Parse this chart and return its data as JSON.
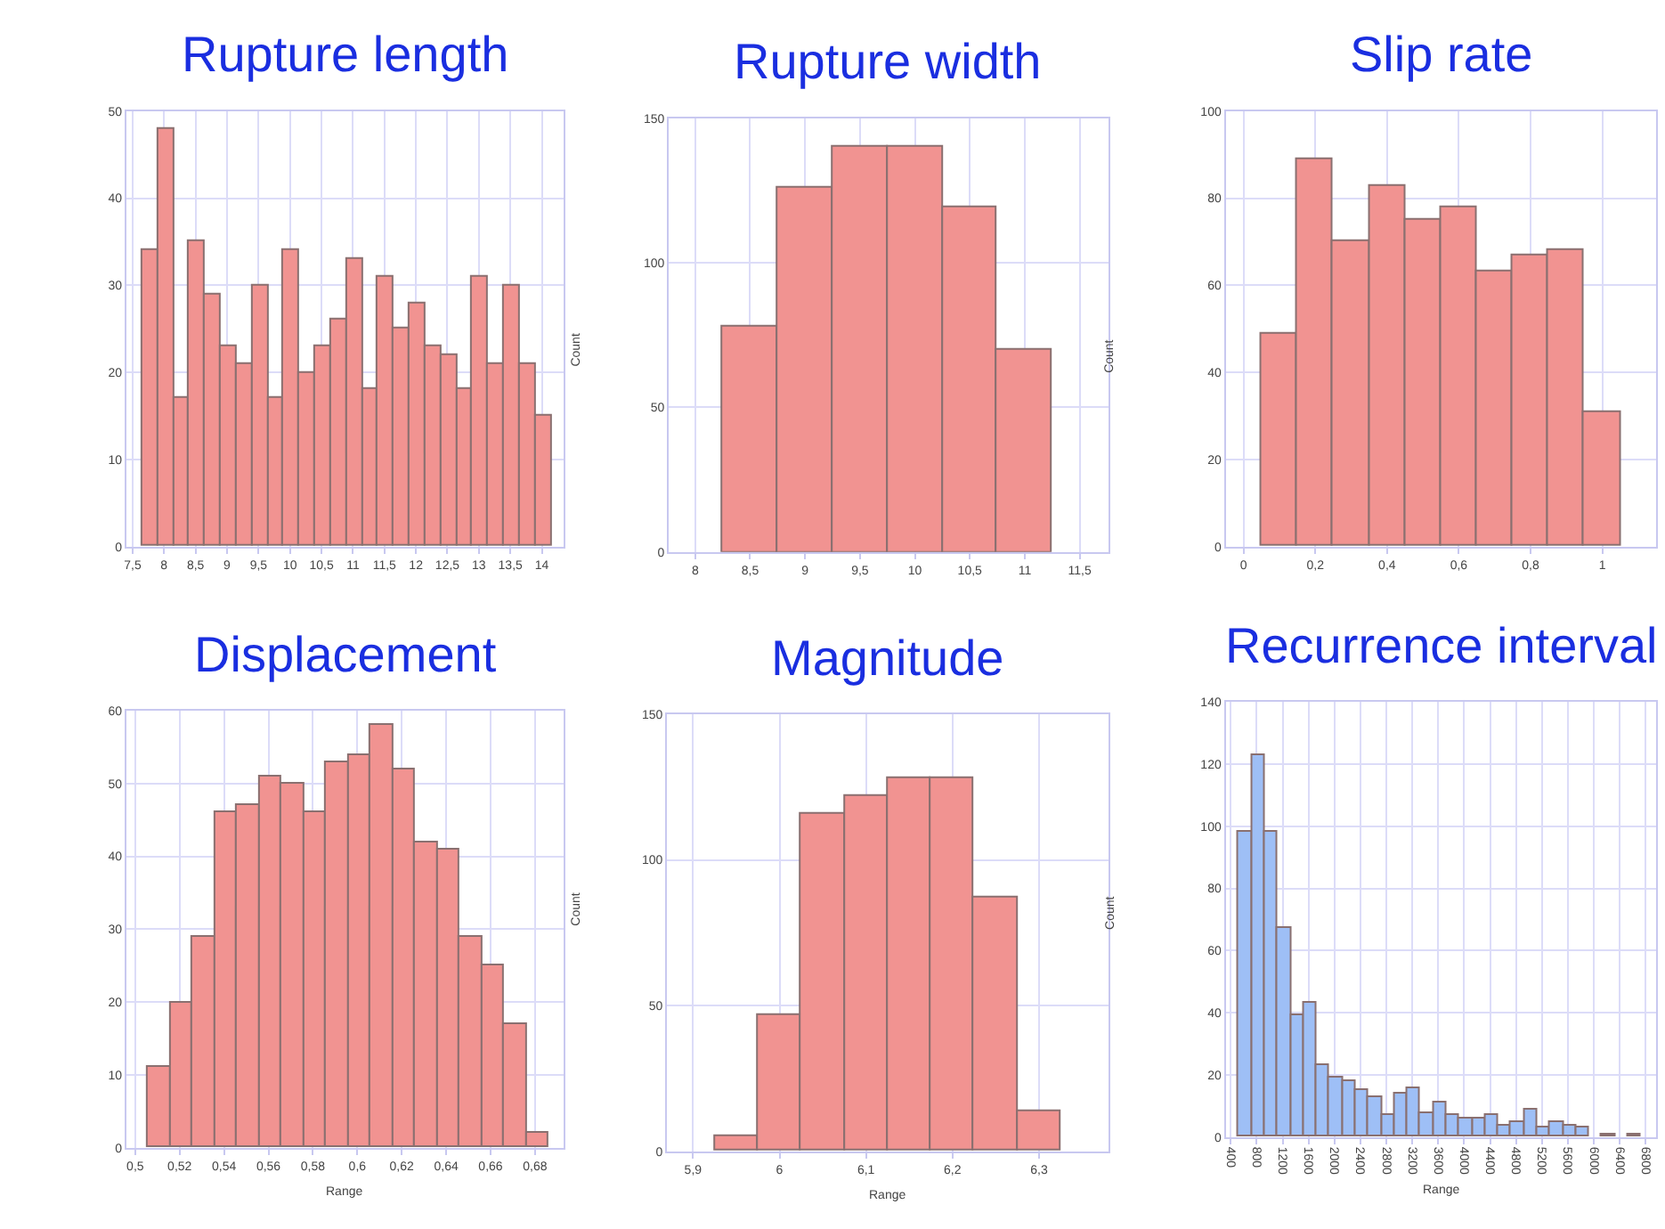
{
  "chart_data": [
    {
      "type": "histogram",
      "title": "Rupture length",
      "ylabel": "Count",
      "color": "#f19391",
      "grid": true,
      "bins": [
        7.65,
        7.9,
        8.15,
        8.4,
        8.65,
        8.9,
        9.15,
        9.4,
        9.65,
        9.9,
        10.15,
        10.4,
        10.65,
        10.9,
        11.15,
        11.4,
        11.65,
        11.9,
        12.15,
        12.4,
        12.65,
        12.9,
        13.15,
        13.4,
        13.65,
        13.9,
        14.15
      ],
      "values": [
        34,
        48,
        17,
        35,
        29,
        23,
        21,
        30,
        17,
        34,
        20,
        23,
        26,
        33,
        18,
        31,
        25,
        28,
        23,
        22,
        18,
        31,
        21,
        30,
        21,
        15
      ],
      "xlim": [
        7.4,
        14.35
      ],
      "ylim": [
        0,
        50
      ],
      "xticks": [
        {
          "value": 7.5,
          "label": "7,5"
        },
        8,
        {
          "value": 8.5,
          "label": "8,5"
        },
        9,
        {
          "value": 9.5,
          "label": "9,5"
        },
        10,
        {
          "value": 10.5,
          "label": "10,5"
        },
        11,
        {
          "value": 11.5,
          "label": "11,5"
        },
        12,
        {
          "value": 12.5,
          "label": "12,5"
        },
        13,
        {
          "value": 13.5,
          "label": "13,5"
        },
        14
      ],
      "yticks": [
        0,
        10,
        20,
        30,
        40,
        50
      ]
    },
    {
      "type": "histogram",
      "title": "Rupture width",
      "ylabel": "Count",
      "color": "#f19391",
      "grid": true,
      "bins": [
        8.25,
        8.75,
        9.25,
        9.75,
        10.25,
        10.75,
        11.25
      ],
      "values": [
        78,
        126,
        140,
        140,
        119,
        70
      ],
      "xlim": [
        7.76,
        11.76
      ],
      "ylim": [
        0,
        150
      ],
      "xticks": [
        8,
        {
          "value": 8.5,
          "label": "8,5"
        },
        9,
        {
          "value": 9.5,
          "label": "9,5"
        },
        10,
        {
          "value": 10.5,
          "label": "10,5"
        },
        11,
        {
          "value": 11.5,
          "label": "11,5"
        }
      ],
      "yticks": [
        0,
        50,
        100,
        150
      ]
    },
    {
      "type": "histogram",
      "title": "Slip rate",
      "color": "#f19391",
      "grid": true,
      "bins": [
        0.05,
        0.15,
        0.25,
        0.35,
        0.45,
        0.55,
        0.65,
        0.75,
        0.85,
        0.95,
        1.05
      ],
      "values": [
        49,
        89,
        70,
        83,
        75,
        78,
        63,
        67,
        68,
        31
      ],
      "xlim": [
        -0.05,
        1.15
      ],
      "ylim": [
        0,
        100
      ],
      "xticks": [
        0,
        {
          "value": 0.2,
          "label": "0,2"
        },
        {
          "value": 0.4,
          "label": "0,4"
        },
        {
          "value": 0.6,
          "label": "0,6"
        },
        {
          "value": 0.8,
          "label": "0,8"
        },
        1
      ],
      "yticks": [
        0,
        20,
        40,
        60,
        80,
        100
      ]
    },
    {
      "type": "histogram",
      "title": "Displacement",
      "xlabel": "Range",
      "ylabel": "Count",
      "color": "#f19391",
      "grid": true,
      "bins": [
        0.506,
        0.516,
        0.526,
        0.536,
        0.546,
        0.556,
        0.566,
        0.576,
        0.586,
        0.596,
        0.606,
        0.616,
        0.626,
        0.636,
        0.646,
        0.656,
        0.666,
        0.676,
        0.686
      ],
      "values": [
        11,
        20,
        29,
        46,
        47,
        51,
        50,
        46,
        53,
        54,
        58,
        52,
        42,
        41,
        29,
        25,
        17,
        2
      ],
      "xlim": [
        0.496,
        0.693
      ],
      "ylim": [
        0,
        60
      ],
      "xticks": [
        {
          "value": 0.5,
          "label": "0,5"
        },
        {
          "value": 0.52,
          "label": "0,52"
        },
        {
          "value": 0.54,
          "label": "0,54"
        },
        {
          "value": 0.56,
          "label": "0,56"
        },
        {
          "value": 0.58,
          "label": "0,58"
        },
        {
          "value": 0.6,
          "label": "0,6"
        },
        {
          "value": 0.62,
          "label": "0,62"
        },
        {
          "value": 0.64,
          "label": "0,64"
        },
        {
          "value": 0.66,
          "label": "0,66"
        },
        {
          "value": 0.68,
          "label": "0,68"
        }
      ],
      "yticks": [
        0,
        10,
        20,
        30,
        40,
        50,
        60
      ]
    },
    {
      "type": "histogram",
      "title": "Magnitude",
      "xlabel": "Range",
      "ylabel": "Count",
      "color": "#f19391",
      "grid": true,
      "bins": [
        5.925,
        5.975,
        6.025,
        6.075,
        6.125,
        6.175,
        6.225,
        6.275,
        6.325
      ],
      "values": [
        5,
        47,
        116,
        122,
        128,
        128,
        87,
        14
      ],
      "xlim": [
        5.87,
        6.38
      ],
      "ylim": [
        0,
        150
      ],
      "xticks": [
        {
          "value": 5.9,
          "label": "5,9"
        },
        6,
        {
          "value": 6.1,
          "label": "6,1"
        },
        {
          "value": 6.2,
          "label": "6,2"
        },
        {
          "value": 6.3,
          "label": "6,3"
        }
      ],
      "yticks": [
        0,
        50,
        100,
        150
      ]
    },
    {
      "type": "histogram",
      "title": "Recurrence interval",
      "xlabel": "Range",
      "color": "#9ebff6",
      "grid": true,
      "bins": [
        525,
        725,
        925,
        1125,
        1325,
        1525,
        1725,
        1925,
        2125,
        2325,
        2525,
        2725,
        2925,
        3125,
        3325,
        3525,
        3725,
        3925,
        4125,
        4325,
        4525,
        4725,
        4925,
        5125,
        5325,
        5525,
        5725,
        5925,
        6125,
        6325,
        6525,
        6725
      ],
      "values": [
        98,
        123,
        98,
        67,
        39,
        43,
        23,
        19,
        18,
        15,
        13,
        7,
        14,
        16,
        8,
        11,
        7,
        6,
        6,
        7,
        4,
        5,
        9,
        3,
        5,
        4,
        3,
        0,
        1,
        0,
        1
      ],
      "xlim": [
        320,
        6960
      ],
      "ylim": [
        0,
        140
      ],
      "xticks": [
        400,
        800,
        1200,
        1600,
        2000,
        2400,
        2800,
        3200,
        3600,
        4000,
        4400,
        4800,
        5200,
        5600,
        6000,
        6400,
        6800
      ],
      "yticks": [
        0,
        20,
        40,
        60,
        80,
        100,
        120,
        140
      ]
    }
  ]
}
